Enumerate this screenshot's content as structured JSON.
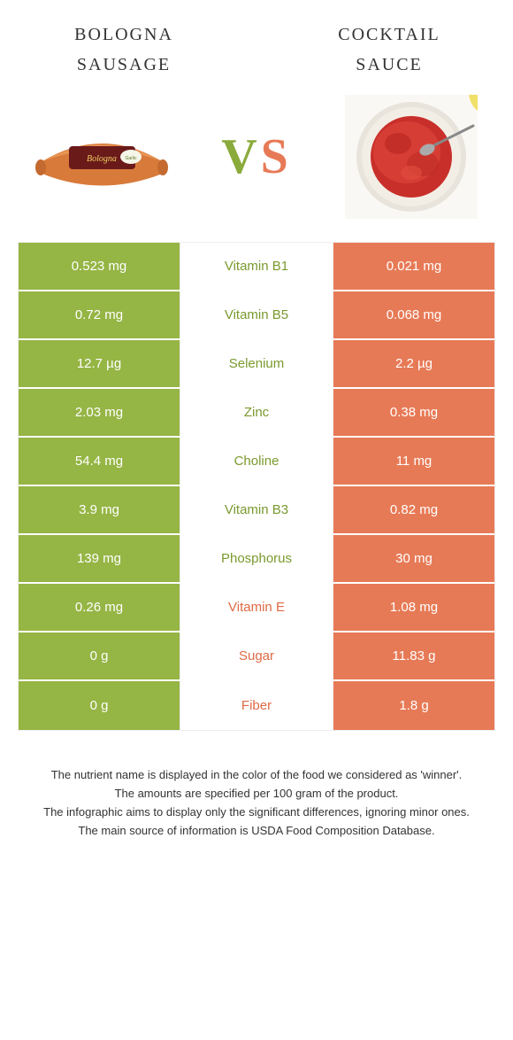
{
  "colors": {
    "green": "#95b544",
    "orange": "#e77a56",
    "green_text": "#7a9a2e",
    "orange_text": "#e06a45"
  },
  "header": {
    "left": "bologna sausage",
    "right": "cocktail sauce"
  },
  "vs": {
    "v": "V",
    "s": "S"
  },
  "rows": [
    {
      "left": "0.523 mg",
      "mid": "Vitamin B1",
      "right": "0.021 mg",
      "winner": "left"
    },
    {
      "left": "0.72 mg",
      "mid": "Vitamin B5",
      "right": "0.068 mg",
      "winner": "left"
    },
    {
      "left": "12.7 µg",
      "mid": "Selenium",
      "right": "2.2 µg",
      "winner": "left"
    },
    {
      "left": "2.03 mg",
      "mid": "Zinc",
      "right": "0.38 mg",
      "winner": "left"
    },
    {
      "left": "54.4 mg",
      "mid": "Choline",
      "right": "11 mg",
      "winner": "left"
    },
    {
      "left": "3.9 mg",
      "mid": "Vitamin B3",
      "right": "0.82 mg",
      "winner": "left"
    },
    {
      "left": "139 mg",
      "mid": "Phosphorus",
      "right": "30 mg",
      "winner": "left"
    },
    {
      "left": "0.26 mg",
      "mid": "Vitamin E",
      "right": "1.08 mg",
      "winner": "right"
    },
    {
      "left": "0 g",
      "mid": "Sugar",
      "right": "11.83 g",
      "winner": "right"
    },
    {
      "left": "0 g",
      "mid": "Fiber",
      "right": "1.8 g",
      "winner": "right"
    }
  ],
  "footer": {
    "l1": "The nutrient name is displayed in the color of the food we considered as 'winner'.",
    "l2": "The amounts are specified per 100 gram of the product.",
    "l3": "The infographic aims to display only the significant differences, ignoring minor ones.",
    "l4": "The main source of information is USDA Food Composition Database."
  }
}
